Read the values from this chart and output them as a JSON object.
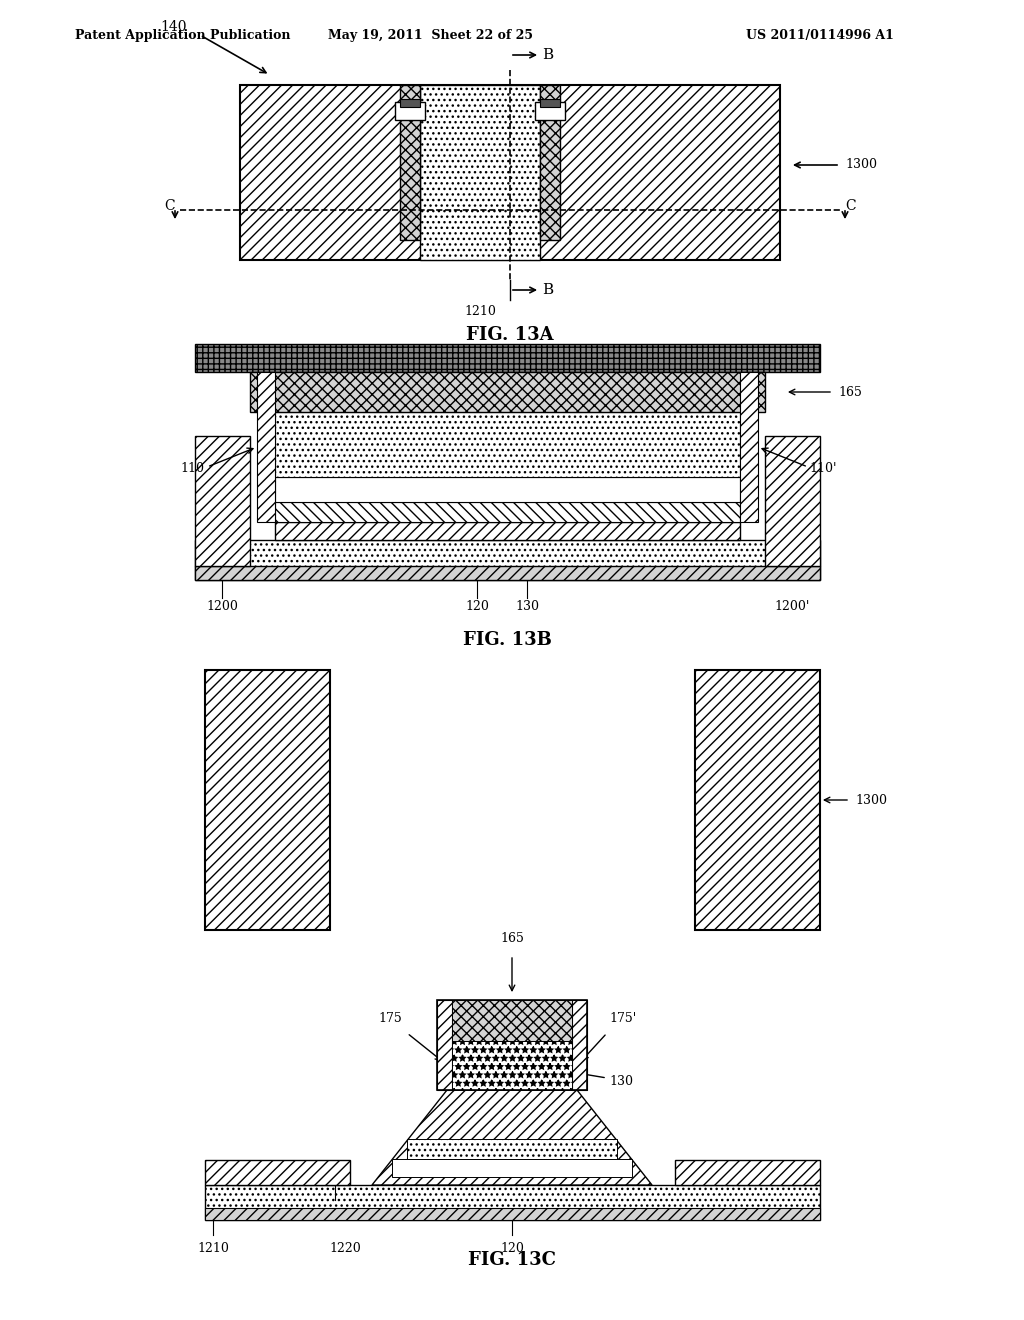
{
  "header_left": "Patent Application Publication",
  "header_mid": "May 19, 2011  Sheet 22 of 25",
  "header_right": "US 2011/0114996 A1",
  "fig_labels": [
    "FIG. 13A",
    "FIG. 13B",
    "FIG. 13C"
  ],
  "bg_color": "#ffffff",
  "line_color": "#000000",
  "hatch_color": "#000000"
}
